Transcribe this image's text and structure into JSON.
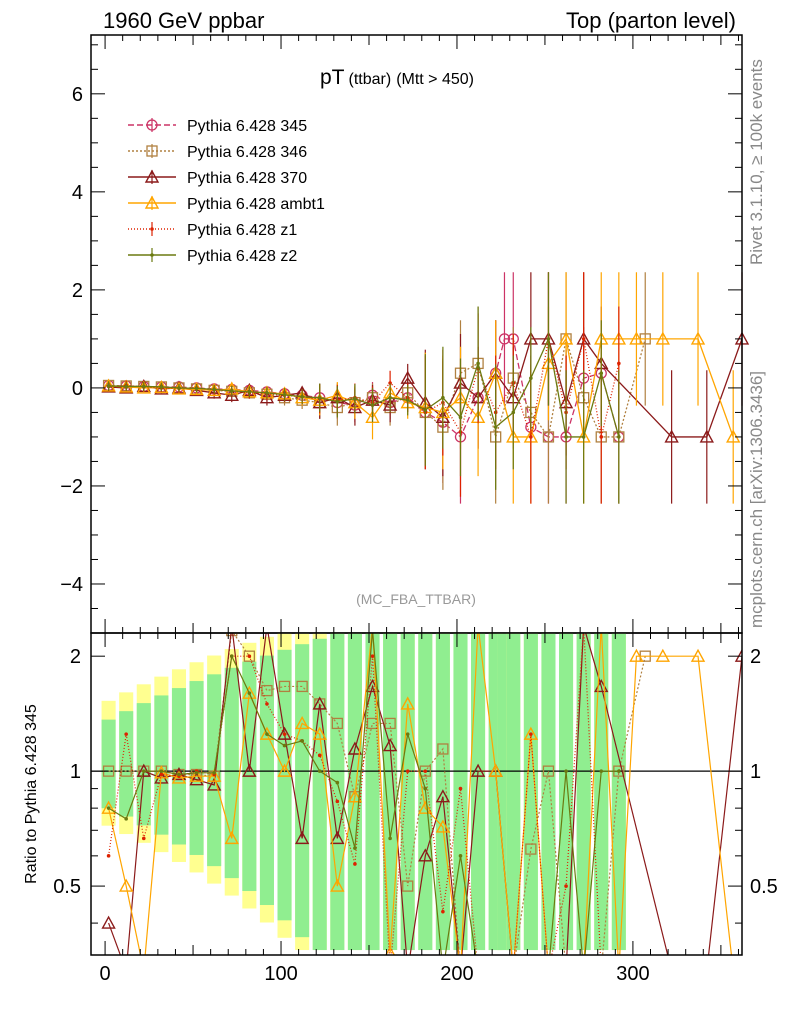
{
  "header": {
    "left_label": "1960 GeV ppbar",
    "right_label": "Top (parton level)"
  },
  "side_labels": {
    "rivet": "Rivet 3.1.10, ≥ 100k events",
    "mcplots": "mcplots.cern.ch [arXiv:1306.3436]"
  },
  "chart_data": {
    "type": "line",
    "title": "pT",
    "title_sub": "(ttbar)",
    "title_cut": "(Mtt > 450)",
    "analysis_label": "(MC_FBA_TTBAR)",
    "xlabel": "",
    "ylabel": "",
    "xlim": [
      -8,
      362
    ],
    "ylim": [
      -5,
      7.2
    ],
    "yticks": [
      -4,
      -2,
      0,
      2,
      4,
      6
    ],
    "xticks": [
      0,
      100,
      200,
      300
    ],
    "ratio": {
      "ylabel": "Ratio to Pythia 6.428 345",
      "ylim": [
        0.33,
        2.3
      ],
      "yticks": [
        0.5,
        1,
        2
      ],
      "band_colors": {
        "inner": "#90ee90",
        "outer": "#ffff90"
      }
    },
    "series": [
      {
        "name": "Pythia 6.428 345",
        "color": "#cc3366",
        "dash": "6,3",
        "marker": "circle",
        "x": [
          2,
          12,
          22,
          32,
          42,
          52,
          62,
          72,
          82,
          92,
          102,
          112,
          122,
          132,
          142,
          152,
          162,
          172,
          182,
          192,
          202,
          212,
          222,
          227,
          232,
          242,
          252,
          262,
          272,
          282,
          292
        ],
        "y": [
          0.05,
          0.04,
          0.03,
          0.02,
          0.02,
          0.0,
          -0.02,
          -0.03,
          -0.05,
          -0.08,
          -0.12,
          -0.15,
          -0.2,
          -0.3,
          -0.35,
          -0.15,
          -0.3,
          -0.2,
          -0.5,
          -0.7,
          -1.0,
          -0.2,
          0.3,
          1.0,
          1.0,
          -0.8,
          -1.0,
          -1.0,
          0.2,
          0.3,
          -1.0
        ]
      },
      {
        "name": "Pythia 6.428 346",
        "color": "#b08040",
        "dash": "2,2",
        "marker": "square",
        "x": [
          2,
          12,
          22,
          32,
          42,
          52,
          62,
          72,
          82,
          92,
          102,
          112,
          122,
          132,
          142,
          152,
          162,
          172,
          182,
          192,
          202,
          212,
          222,
          232,
          242,
          252,
          262,
          272,
          282,
          292,
          307
        ],
        "y": [
          0.05,
          0.04,
          0.03,
          0.02,
          0.0,
          -0.02,
          -0.05,
          -0.07,
          -0.1,
          -0.13,
          -0.2,
          -0.25,
          -0.3,
          -0.4,
          -0.3,
          -0.2,
          -0.4,
          -0.1,
          -0.5,
          -0.8,
          0.3,
          0.5,
          -1.0,
          0.2,
          -0.5,
          -1.0,
          1.0,
          -0.2,
          -1.0,
          -1.0,
          1.0
        ]
      },
      {
        "name": "Pythia 6.428 370",
        "color": "#8b1a1a",
        "dash": "",
        "marker": "triangle",
        "x": [
          2,
          12,
          22,
          32,
          42,
          52,
          62,
          72,
          82,
          92,
          102,
          112,
          122,
          132,
          142,
          152,
          162,
          172,
          182,
          192,
          202,
          212,
          222,
          232,
          242,
          252,
          262,
          272,
          282,
          322,
          342,
          362
        ],
        "y": [
          0.02,
          0.0,
          0.03,
          -0.02,
          0.0,
          -0.05,
          -0.1,
          -0.15,
          -0.05,
          -0.2,
          -0.15,
          -0.1,
          -0.3,
          -0.2,
          -0.4,
          -0.25,
          -0.35,
          0.2,
          -0.3,
          -0.6,
          0.1,
          -0.2,
          0.3,
          -0.2,
          1.0,
          1.0,
          -0.3,
          1.0,
          0.5,
          -1.0,
          -1.0,
          1.0
        ]
      },
      {
        "name": "Pythia 6.428 ambt1",
        "color": "#ffa500",
        "dash": "",
        "marker": "triangle-open",
        "x": [
          2,
          12,
          22,
          32,
          42,
          52,
          62,
          72,
          82,
          92,
          102,
          112,
          122,
          132,
          142,
          152,
          162,
          172,
          182,
          192,
          202,
          212,
          222,
          232,
          242,
          252,
          262,
          272,
          282,
          292,
          302,
          317,
          337,
          357
        ],
        "y": [
          0.04,
          0.02,
          0.0,
          0.01,
          -0.02,
          -0.03,
          -0.05,
          -0.02,
          -0.08,
          -0.1,
          -0.12,
          -0.2,
          -0.25,
          -0.15,
          -0.3,
          -0.6,
          -0.1,
          -0.3,
          -0.4,
          -0.5,
          -0.2,
          -0.6,
          0.3,
          -1.0,
          -1.0,
          0.5,
          1.0,
          -1.0,
          1.0,
          1.0,
          1.0,
          1.0,
          1.0,
          -1.0
        ]
      },
      {
        "name": "Pythia 6.428 z1",
        "color": "#dd2200",
        "dash": "1,2",
        "marker": "dot",
        "x": [
          2,
          12,
          22,
          32,
          42,
          52,
          62,
          72,
          82,
          92,
          102,
          112,
          122,
          132,
          142,
          152,
          162,
          172,
          182,
          192,
          202,
          212,
          222,
          232,
          242,
          252,
          262,
          272,
          282,
          292
        ],
        "y": [
          0.03,
          0.05,
          0.02,
          0.0,
          -0.01,
          0.0,
          -0.04,
          -0.06,
          -0.1,
          -0.12,
          -0.15,
          -0.18,
          -0.22,
          -0.25,
          -0.2,
          -0.3,
          0.1,
          -0.2,
          -0.5,
          -0.3,
          -0.9,
          0.4,
          -0.5,
          0.1,
          -1.0,
          1.0,
          -0.5,
          1.0,
          -1.0,
          0.5
        ]
      },
      {
        "name": "Pythia 6.428 z2",
        "color": "#6b7a10",
        "dash": "",
        "marker": "dot",
        "x": [
          2,
          12,
          22,
          32,
          42,
          52,
          62,
          72,
          82,
          92,
          102,
          112,
          122,
          132,
          142,
          152,
          162,
          172,
          182,
          192,
          202,
          212,
          222,
          232,
          242,
          252,
          262,
          272,
          282,
          292
        ],
        "y": [
          0.04,
          0.03,
          0.03,
          0.02,
          0.0,
          -0.01,
          -0.03,
          -0.06,
          -0.08,
          -0.1,
          -0.14,
          -0.18,
          -0.2,
          -0.28,
          -0.22,
          -0.35,
          -0.2,
          -0.25,
          -0.45,
          -0.2,
          -0.6,
          0.5,
          -0.8,
          -0.5,
          0.2,
          1.0,
          -1.0,
          -1.0,
          0.3,
          -1.0
        ]
      }
    ]
  }
}
